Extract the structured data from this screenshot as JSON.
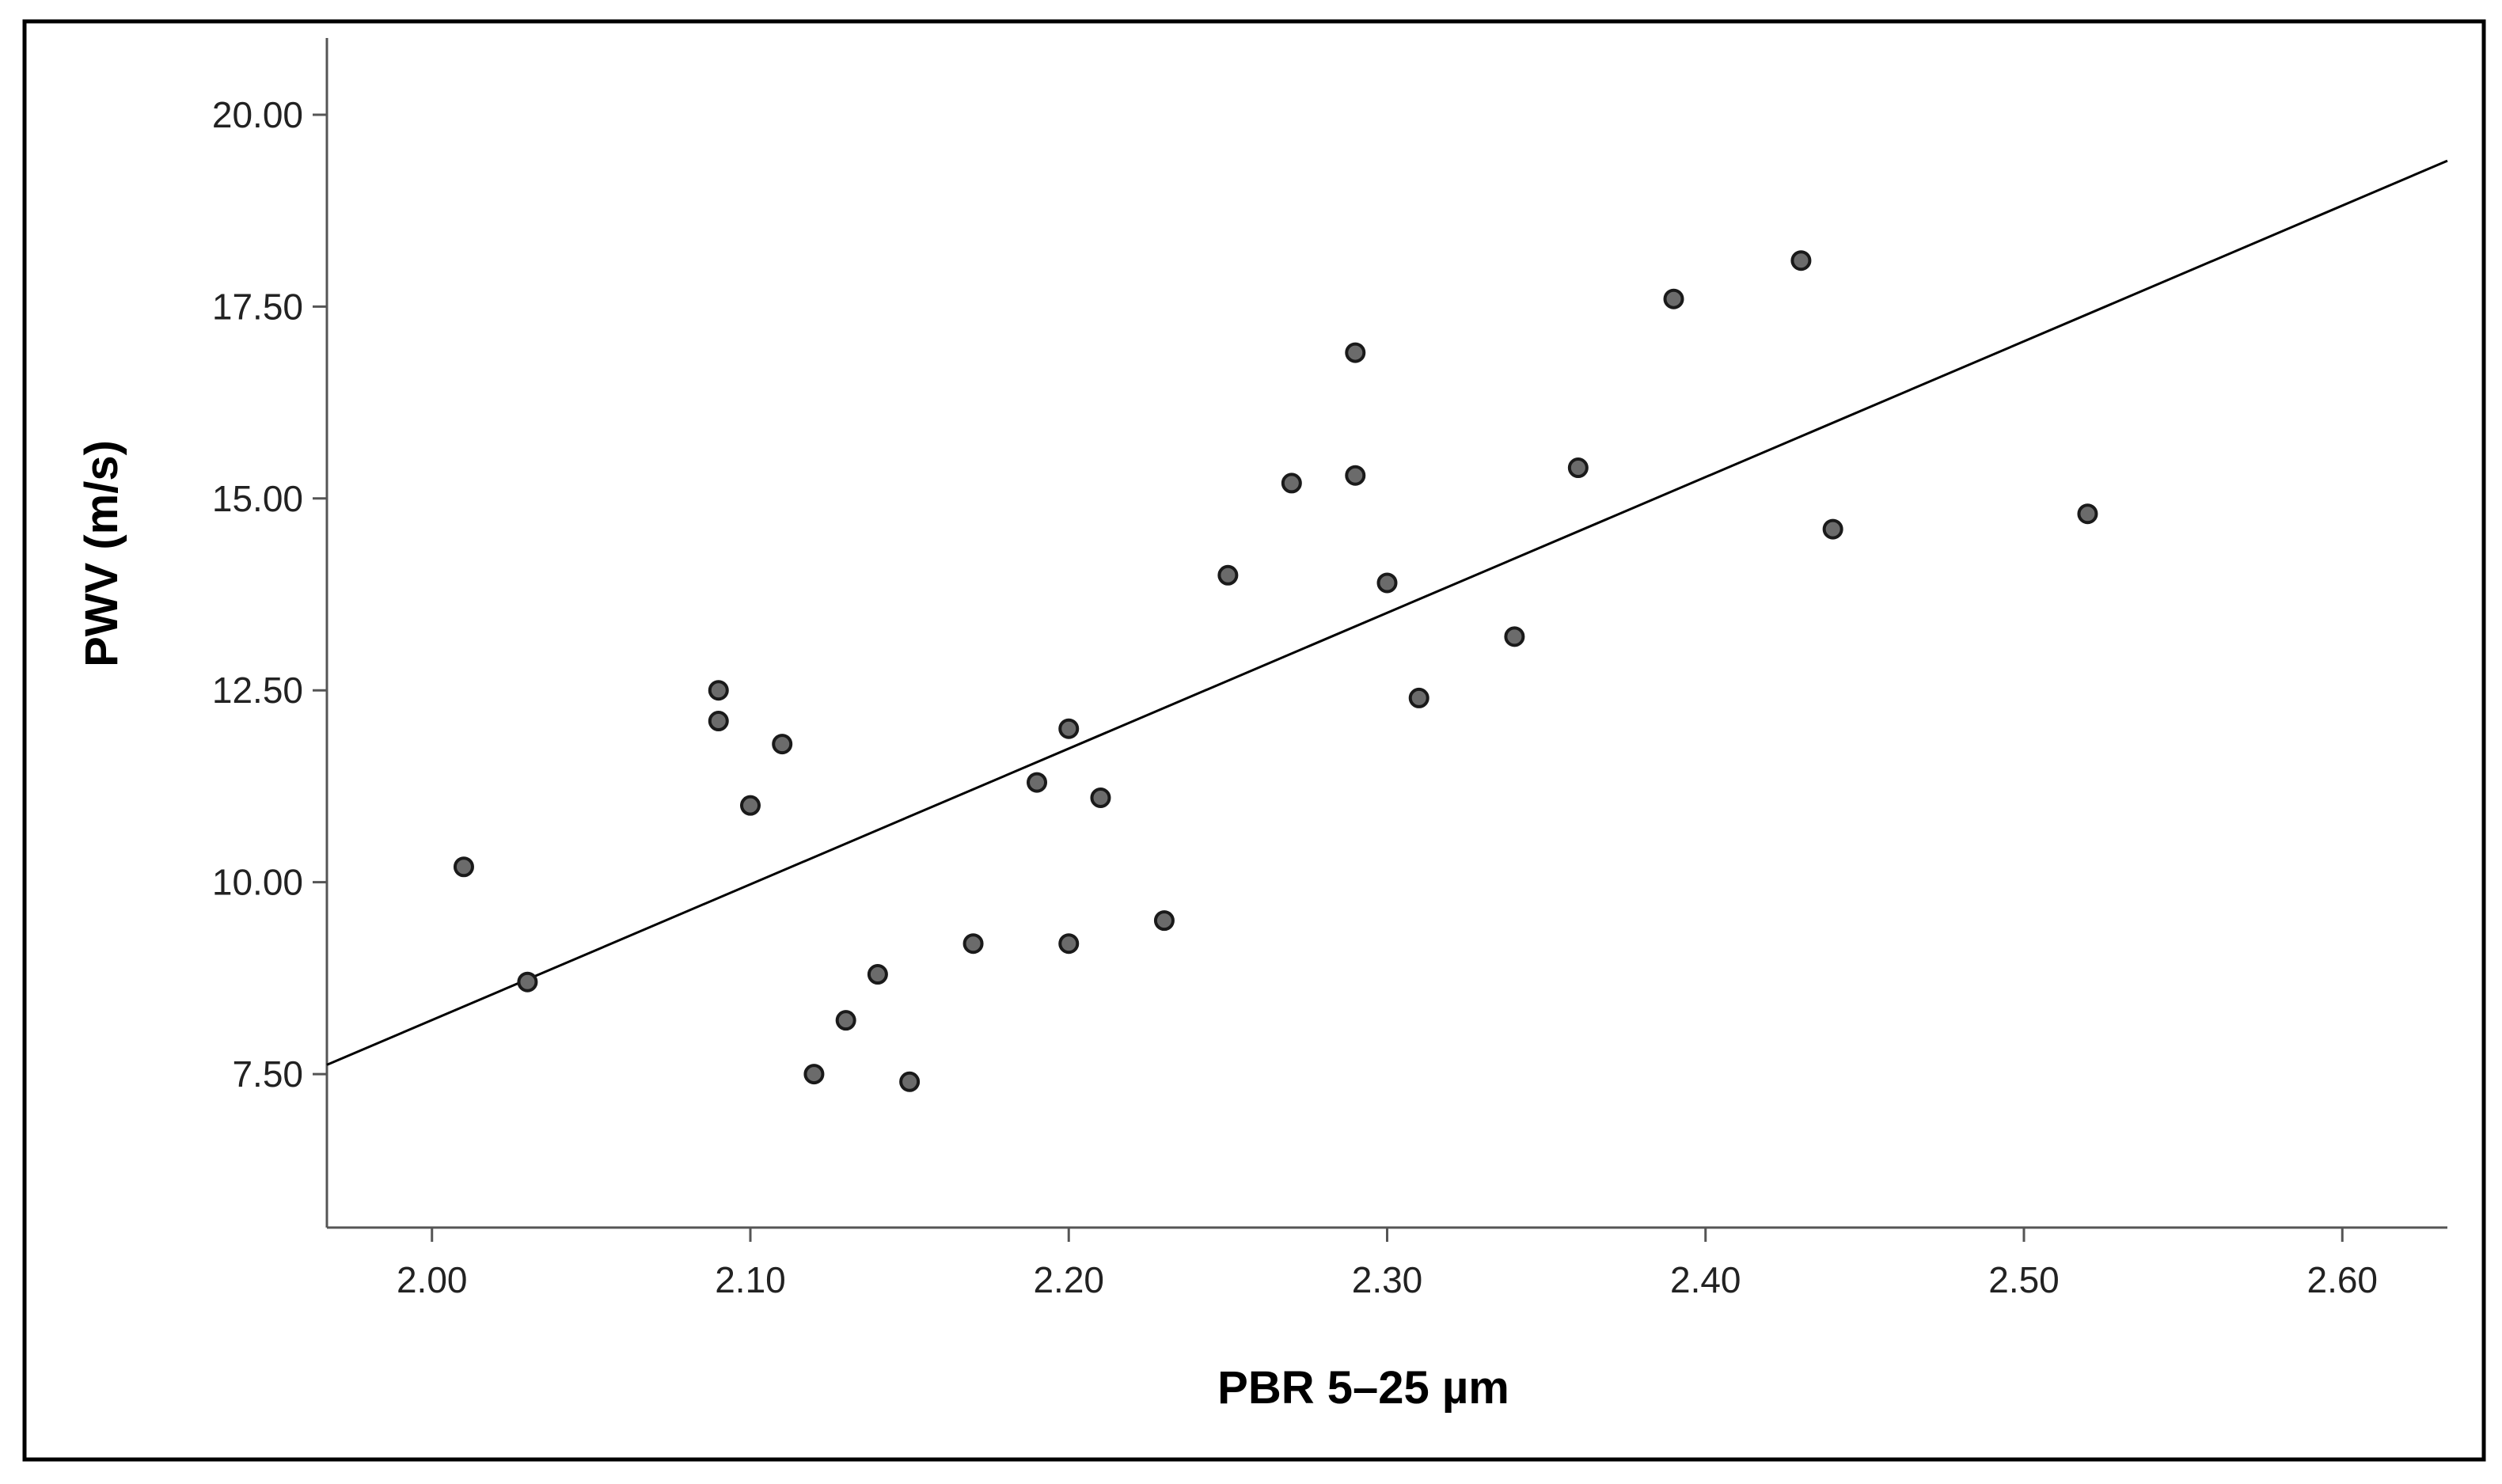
{
  "chart_data": {
    "type": "scatter",
    "title": "",
    "xlabel": "PBR 5–25 µm",
    "ylabel": "PWV (m/s)",
    "xlim": [
      1.967,
      2.633
    ],
    "ylim": [
      5.5,
      21.0
    ],
    "xticks": [
      "2.00",
      "2.10",
      "2.20",
      "2.30",
      "2.40",
      "2.50",
      "2.60"
    ],
    "yticks": [
      "7.50",
      "10.00",
      "12.50",
      "15.00",
      "17.50",
      "20.00"
    ],
    "grid": false,
    "legend": "none",
    "colors": {
      "point_fill": "#6b6b6b",
      "point_stroke": "#1a1a1a",
      "fit_line": "#000000",
      "axis": "#555555",
      "frame": "#000000"
    },
    "series": [
      {
        "points": [
          {
            "x": 2.01,
            "y": 10.2
          },
          {
            "x": 2.03,
            "y": 8.7
          },
          {
            "x": 2.09,
            "y": 12.5
          },
          {
            "x": 2.09,
            "y": 12.1
          },
          {
            "x": 2.1,
            "y": 11.0
          },
          {
            "x": 2.11,
            "y": 11.8
          },
          {
            "x": 2.12,
            "y": 7.5
          },
          {
            "x": 2.13,
            "y": 8.2
          },
          {
            "x": 2.14,
            "y": 8.8
          },
          {
            "x": 2.15,
            "y": 7.4
          },
          {
            "x": 2.17,
            "y": 9.2
          },
          {
            "x": 2.19,
            "y": 11.3
          },
          {
            "x": 2.2,
            "y": 12.0
          },
          {
            "x": 2.2,
            "y": 9.2
          },
          {
            "x": 2.21,
            "y": 11.1
          },
          {
            "x": 2.23,
            "y": 9.5
          },
          {
            "x": 2.25,
            "y": 14.0
          },
          {
            "x": 2.27,
            "y": 15.2
          },
          {
            "x": 2.29,
            "y": 16.9
          },
          {
            "x": 2.29,
            "y": 15.3
          },
          {
            "x": 2.3,
            "y": 13.9
          },
          {
            "x": 2.31,
            "y": 12.4
          },
          {
            "x": 2.34,
            "y": 13.2
          },
          {
            "x": 2.36,
            "y": 15.4
          },
          {
            "x": 2.39,
            "y": 17.6
          },
          {
            "x": 2.43,
            "y": 18.1
          },
          {
            "x": 2.44,
            "y": 14.6
          },
          {
            "x": 2.52,
            "y": 14.8
          }
        ]
      }
    ],
    "fit_line": {
      "x": [
        1.967,
        2.633
      ],
      "y": [
        7.62,
        19.4
      ]
    }
  }
}
